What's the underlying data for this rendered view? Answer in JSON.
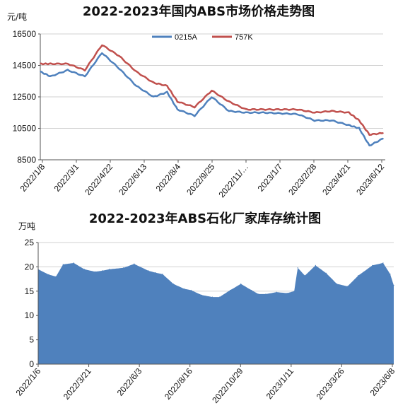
{
  "chart_data": [
    {
      "type": "line",
      "title": "2022-2023年国内ABS市场价格走势图",
      "ylabel": "元/吨",
      "ylim": [
        8500,
        16500
      ],
      "yticks": [
        8500,
        10500,
        12500,
        14500,
        16500
      ],
      "xticks": [
        "2022/1/8",
        "2022/3/1",
        "2022/4/22",
        "2022/6/13",
        "2022/8/4",
        "2022/9/25",
        "2022/11/…",
        "2023/1/7",
        "2023/2/28",
        "2023/4/21",
        "2023/6/12"
      ],
      "grid": true,
      "legend": "top-right",
      "colors": [
        "#4f81bd",
        "#c0504d"
      ],
      "series": [
        {
          "name": "0215A",
          "x": [
            0,
            0.03,
            0.08,
            0.13,
            0.18,
            0.23,
            0.28,
            0.33,
            0.37,
            0.4,
            0.45,
            0.5,
            0.55,
            0.6,
            0.65,
            0.7,
            0.75,
            0.8,
            0.85,
            0.9,
            0.93,
            0.96,
            1
          ],
          "values": [
            14100,
            13800,
            14200,
            13800,
            15300,
            14300,
            13200,
            12500,
            12800,
            11700,
            11300,
            12500,
            11600,
            11500,
            11500,
            11450,
            11400,
            11000,
            11000,
            10700,
            10500,
            9400,
            9850
          ]
        },
        {
          "name": "757K",
          "x": [
            0,
            0.03,
            0.08,
            0.13,
            0.18,
            0.23,
            0.28,
            0.33,
            0.37,
            0.4,
            0.45,
            0.5,
            0.55,
            0.6,
            0.65,
            0.7,
            0.75,
            0.8,
            0.85,
            0.9,
            0.93,
            0.96,
            1
          ],
          "values": [
            14600,
            14600,
            14600,
            14200,
            15800,
            15100,
            14100,
            13400,
            13200,
            12200,
            11850,
            12900,
            12200,
            11700,
            11700,
            11700,
            11700,
            11500,
            11600,
            11500,
            11000,
            10100,
            10200
          ]
        }
      ]
    },
    {
      "type": "area",
      "title": "2022-2023年ABS石化厂家库存统计图",
      "ylabel": "万吨",
      "ylim": [
        0,
        25
      ],
      "yticks": [
        0,
        5,
        10,
        15,
        20,
        25
      ],
      "xticks": [
        "2022/1/6",
        "2022/3/21",
        "2022/6/3",
        "2022/8/16",
        "2022/10/29",
        "2023/1/11",
        "2023/3/26",
        "2023/6/8"
      ],
      "grid": true,
      "colors": [
        "#4f81bd"
      ],
      "series": [
        {
          "name": "",
          "x": [
            0,
            0.03,
            0.05,
            0.07,
            0.1,
            0.13,
            0.16,
            0.18,
            0.2,
            0.24,
            0.27,
            0.31,
            0.33,
            0.35,
            0.38,
            0.41,
            0.43,
            0.46,
            0.49,
            0.51,
            0.54,
            0.57,
            0.6,
            0.62,
            0.64,
            0.67,
            0.7,
            0.72,
            0.73,
            0.75,
            0.78,
            0.81,
            0.84,
            0.87,
            0.9,
            0.94,
            0.97,
            0.99,
            1
          ],
          "values": [
            19.5,
            18.4,
            18.0,
            20.5,
            20.8,
            19.5,
            19.0,
            19.2,
            19.5,
            19.8,
            20.6,
            19.2,
            18.8,
            18.5,
            16.5,
            15.5,
            15.2,
            14.2,
            13.8,
            13.8,
            15.2,
            16.5,
            15.2,
            14.4,
            14.4,
            14.8,
            14.6,
            15.0,
            19.8,
            18.2,
            20.3,
            18.7,
            16.5,
            16.0,
            18.2,
            20.3,
            20.8,
            18.5,
            16.2
          ]
        }
      ]
    }
  ]
}
